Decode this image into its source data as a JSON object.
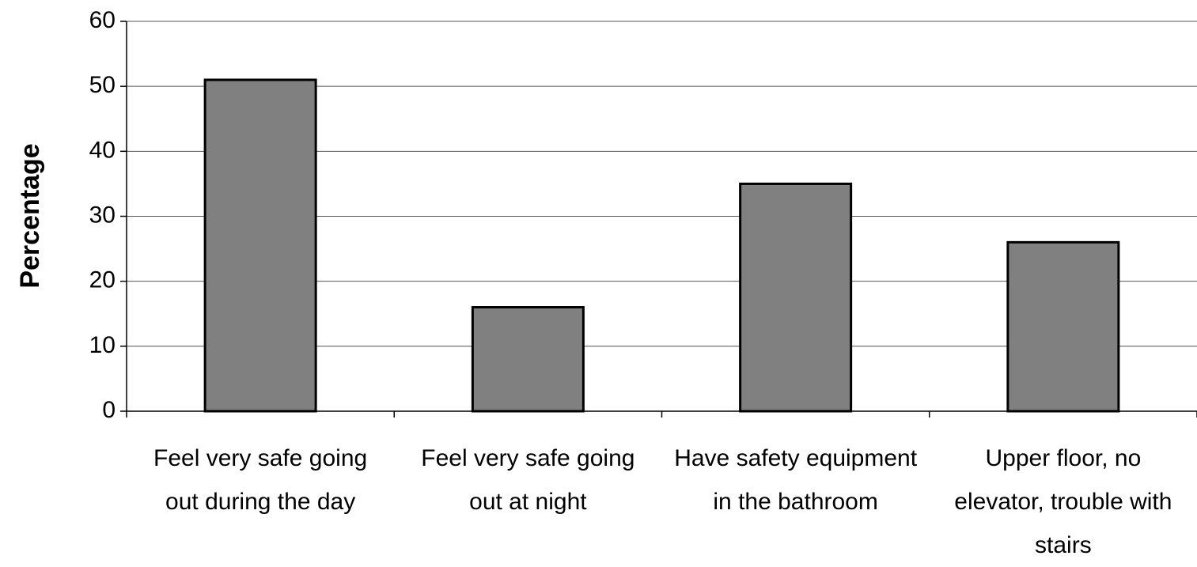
{
  "chart_data": {
    "type": "bar",
    "y_label": "Percentage",
    "categories": [
      "Feel very safe going out during the day",
      "Feel very safe going out at night",
      "Have safety equipment in the bathroom",
      "Upper floor, no elevator, trouble with stairs"
    ],
    "values": [
      51,
      16,
      35,
      26
    ],
    "color": "#808080",
    "ylim": [
      0,
      60
    ],
    "yticks": [
      0,
      10,
      20,
      30,
      40,
      50,
      60
    ],
    "grid": true
  }
}
